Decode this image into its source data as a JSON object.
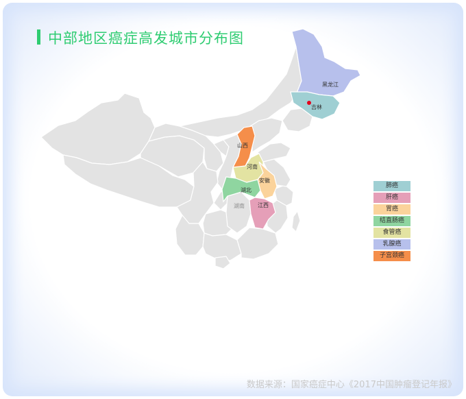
{
  "title": "中部地区癌症高发城市分布图",
  "source": "数据来源：国家癌症中心《2017中国肿瘤登记年报》",
  "colors": {
    "lung": "#9fcfd3",
    "liver": "#e59fb8",
    "stomach": "#fbd39b",
    "colorectal": "#8fd5a0",
    "esophagus": "#e3e3a2",
    "breast": "#b7c0ec",
    "cervical": "#f58e4a",
    "other": "#e3e3e3",
    "marker": "#e4001b"
  },
  "legend": [
    {
      "label": "肺癌",
      "color": "#9fcfd3"
    },
    {
      "label": "肝癌",
      "color": "#e59fb8"
    },
    {
      "label": "胃癌",
      "color": "#fbd39b"
    },
    {
      "label": "结直肠癌",
      "color": "#8fd5a0"
    },
    {
      "label": "食管癌",
      "color": "#e3e3a2"
    },
    {
      "label": "乳腺癌",
      "color": "#b7c0ec"
    },
    {
      "label": "子宫颈癌",
      "color": "#f58e4a"
    }
  ],
  "provinces": {
    "heilongjiang": {
      "name": "黑龙江",
      "cancer": "乳腺癌"
    },
    "jilin": {
      "name": "吉林",
      "cancer": "肺癌"
    },
    "shanxi": {
      "name": "山西",
      "cancer": "子宫颈癌"
    },
    "henan": {
      "name": "河南",
      "cancer": "食管癌"
    },
    "anhui": {
      "name": "安徽",
      "cancer": "胃癌"
    },
    "hubei": {
      "name": "湖北",
      "cancer": "结直肠癌"
    },
    "hunan": {
      "name": "湖南",
      "cancer": ""
    },
    "jiangxi": {
      "name": "江西",
      "cancer": "肝癌"
    }
  }
}
